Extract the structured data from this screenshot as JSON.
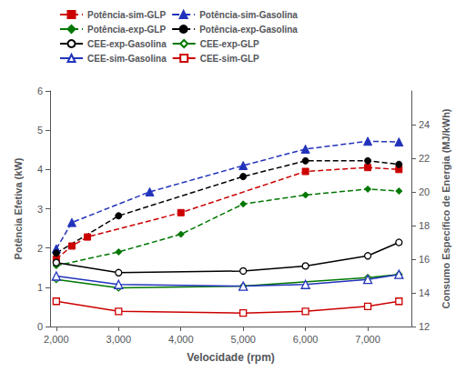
{
  "chart_data": {
    "type": "line",
    "xlabel": "Velocidade (rpm)",
    "ylabel": "Potência Efetiva (kW)",
    "y2label": "Consumo Específico de Energia (MJ/kWh)",
    "xlim": [
      1900,
      7700
    ],
    "xticks": [
      2000,
      3000,
      4000,
      5000,
      6000,
      7000
    ],
    "ylim": [
      0,
      6
    ],
    "yticks": [
      0,
      1,
      2,
      3,
      4,
      5,
      6
    ],
    "y2lim": [
      12,
      26
    ],
    "y2ticks": [
      12,
      14,
      16,
      18,
      20,
      22,
      24
    ],
    "grid": false,
    "legend": "upper left",
    "series": [
      {
        "name": "Potência-sim-GLP",
        "color": "#cc0000",
        "marker": "square",
        "line_style": "dashed",
        "x": [
          2000,
          2250,
          2500,
          4000,
          6000,
          7000,
          7500
        ],
        "values": [
          1.72,
          2.05,
          2.28,
          2.9,
          3.95,
          4.05,
          4.0
        ]
      },
      {
        "name": "Potência-sim-Gasolina",
        "color": "#2233bb",
        "marker": "triangle",
        "line_style": "dashed",
        "x": [
          2000,
          2250,
          3500,
          5000,
          6000,
          7000,
          7500
        ],
        "values": [
          1.98,
          2.65,
          3.43,
          4.1,
          4.52,
          4.72,
          4.7
        ]
      },
      {
        "name": "Potência-exp-GLP",
        "color": "#007700",
        "marker": "diamond",
        "line_style": "dashed",
        "x": [
          2000,
          3000,
          4000,
          5000,
          6000,
          7000,
          7500
        ],
        "values": [
          1.55,
          1.9,
          2.35,
          3.12,
          3.35,
          3.5,
          3.45
        ]
      },
      {
        "name": "Potência-exp-Gasolina",
        "color": "#000000",
        "marker": "circle",
        "line_style": "dashed",
        "x": [
          2000,
          3000,
          5000,
          6000,
          7000,
          7500
        ],
        "values": [
          1.87,
          2.82,
          3.82,
          4.22,
          4.22,
          4.13
        ]
      },
      {
        "name": "CEE-exp-Gasolina",
        "color": "#000000",
        "marker": "open-circle",
        "line_style": "solid",
        "axis": "y2",
        "x": [
          2000,
          3000,
          5000,
          6000,
          7000,
          7500
        ],
        "values": [
          15.8,
          15.2,
          15.3,
          15.6,
          16.2,
          17.0
        ]
      },
      {
        "name": "CEE-exp-GLP",
        "color": "#007700",
        "marker": "open-diamond",
        "line_style": "solid",
        "axis": "y2",
        "x": [
          2000,
          3000,
          5000,
          7000,
          7500
        ],
        "values": [
          14.8,
          14.3,
          14.4,
          14.9,
          15.1
        ]
      },
      {
        "name": "CEE-sim-Gasolina",
        "color": "#2233bb",
        "marker": "open-triangle",
        "line_style": "solid",
        "axis": "y2",
        "x": [
          2000,
          3000,
          5000,
          6000,
          7000,
          7500
        ],
        "values": [
          15.0,
          14.5,
          14.4,
          14.5,
          14.8,
          15.1
        ]
      },
      {
        "name": "CEE-sim-GLP",
        "color": "#cc0000",
        "marker": "open-square",
        "line_style": "solid",
        "axis": "y2",
        "x": [
          2000,
          3000,
          5000,
          6000,
          7000,
          7500
        ],
        "values": [
          13.5,
          12.9,
          12.8,
          12.9,
          13.2,
          13.5
        ]
      }
    ]
  }
}
